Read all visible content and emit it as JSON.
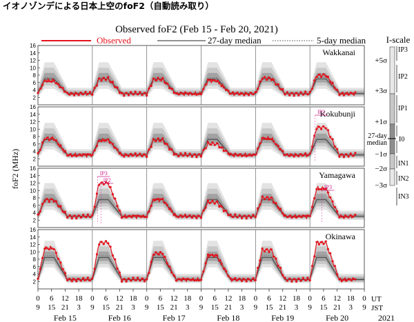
{
  "header": {
    "jp_title": "イオノゾンデによる日本上空のfoF2（自動読み取り）",
    "title": "Observed foF2 (Feb 15 - Feb 20, 2021)"
  },
  "legend": {
    "observed": "Observed",
    "median27": "27-day median",
    "median5": "5-day median"
  },
  "colors": {
    "observed": "#e3121b",
    "pink": "#cc2288",
    "band_dark": "#9a9a9a",
    "band_light": "#d8d8d8"
  },
  "ylabel": "foF2 (MHz)",
  "year_label": "2021",
  "ut_label": "UT",
  "jst_label": "JST",
  "chart_data": {
    "type": "line",
    "x_unit": "hours since Feb 15 00 UT",
    "xlim": [
      0,
      144
    ],
    "ylim": [
      0,
      16
    ],
    "y_ticks": [
      2,
      4,
      6,
      8,
      10,
      12,
      14,
      16
    ],
    "ut_tick_labels": [
      "0",
      "6",
      "12",
      "18",
      "0",
      "6",
      "12",
      "18",
      "0",
      "6",
      "12",
      "18",
      "0",
      "6",
      "12",
      "18",
      "0",
      "6",
      "12",
      "18",
      "0",
      "6",
      "12",
      "18",
      "0"
    ],
    "jst_tick_labels": [
      "9",
      "15",
      "21",
      "3",
      "9",
      "15",
      "21",
      "3",
      "9",
      "15",
      "21",
      "3",
      "9",
      "15",
      "21",
      "3",
      "9",
      "15",
      "21",
      "3",
      "9",
      "15",
      "21",
      "3",
      "9"
    ],
    "day_labels": [
      "Feb 15",
      "Feb 16",
      "Feb 17",
      "Feb 18",
      "Feb 19",
      "Feb 20"
    ],
    "stations": [
      {
        "name": "Wakkanai",
        "day_peak": 7.0,
        "night": 3.0,
        "day_peaks": [
          6.5,
          7.0,
          6.8,
          6.5,
          7.2,
          8.0
        ],
        "annotations": []
      },
      {
        "name": "Kokubunji",
        "day_peak": 7.2,
        "night": 3.0,
        "day_peaks": [
          7.5,
          7.0,
          7.0,
          6.0,
          7.5,
          10.5
        ],
        "annotations": [
          {
            "label": "IP3",
            "day": 5
          }
        ]
      },
      {
        "name": "Yamagawa",
        "day_peak": 7.5,
        "night": 3.0,
        "day_peaks": [
          7.5,
          12.0,
          7.5,
          6.8,
          8.0,
          10.5
        ],
        "annotations": [
          {
            "label": "IP3",
            "day": 1
          },
          {
            "label": "IP2",
            "day": 1
          },
          {
            "label": "IP3",
            "day": 5
          }
        ]
      },
      {
        "name": "Okinawa",
        "day_peak": 8.5,
        "night": 2.5,
        "day_peaks": [
          11.0,
          12.5,
          9.5,
          9.0,
          10.5,
          12.5
        ],
        "annotations": []
      }
    ]
  },
  "iscale": {
    "title": "I-scale",
    "sigma_labels": [
      "+5σ",
      "+3σ",
      "+1σ",
      "−1σ",
      "−2σ",
      "−3σ"
    ],
    "median_label_1": "27-day",
    "median_label_2": "median",
    "level_I0": "I0",
    "levels_p": [
      "IP3",
      "IP2",
      "IP1"
    ],
    "levels_n": [
      "IN1",
      "IN2",
      "IN3"
    ]
  }
}
